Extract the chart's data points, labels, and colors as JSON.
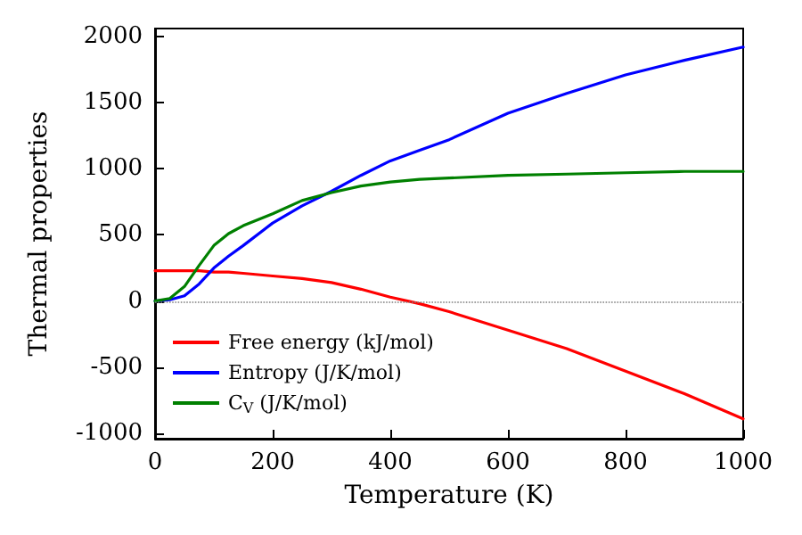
{
  "chart_data": {
    "type": "line",
    "xlabel": "Temperature (K)",
    "ylabel": "Thermal properties",
    "x": [
      0,
      25,
      50,
      75,
      100,
      125,
      150,
      200,
      250,
      300,
      350,
      400,
      450,
      500,
      600,
      700,
      800,
      900,
      1000
    ],
    "series": [
      {
        "name": "Free energy (kJ/mol)",
        "color": "#ff0000",
        "values": [
          230,
          230,
          230,
          230,
          220,
          220,
          210,
          190,
          170,
          140,
          90,
          30,
          -20,
          -80,
          -220,
          -360,
          -530,
          -700,
          -890
        ]
      },
      {
        "name": "Entropy (J/K/mol)",
        "color": "#0000ff",
        "values": [
          0,
          10,
          40,
          130,
          250,
          340,
          420,
          590,
          720,
          830,
          950,
          1060,
          1140,
          1220,
          1420,
          1570,
          1710,
          1820,
          1920
        ]
      },
      {
        "name": "C$_{V}$ (J/K/mol)",
        "color": "#008000",
        "values": [
          0,
          20,
          110,
          270,
          420,
          510,
          570,
          660,
          760,
          820,
          870,
          900,
          920,
          930,
          950,
          960,
          970,
          980,
          980
        ]
      }
    ],
    "xlim": [
      0,
      1000
    ],
    "xticks": [
      0,
      200,
      400,
      600,
      800,
      1000
    ],
    "ylim": [
      -1040,
      2060
    ],
    "yticks": [
      -1000,
      -500,
      0,
      500,
      1000,
      1500,
      2000
    ],
    "ref_lines": [
      {
        "axis": "y",
        "value": 0,
        "color": "#808080",
        "line_style": "dotted"
      }
    ],
    "legend": "bottom left",
    "grid": false,
    "marker": "none",
    "line_style": "solid"
  }
}
